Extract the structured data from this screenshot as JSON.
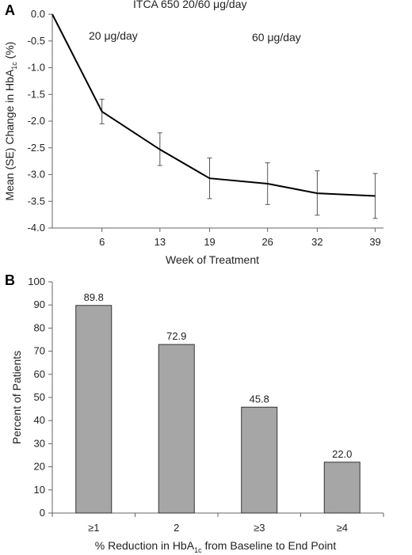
{
  "chart_data": [
    {
      "panel": "A",
      "type": "line",
      "title": "ITCA 650 20/60 μg/day",
      "annotations": [
        "20 μg/day",
        "60 μg/day"
      ],
      "xlabel": "Week of Treatment",
      "ylabel_main": "Mean (SE) Change in HbA",
      "ylabel_sub": "1c",
      "ylabel_tail": " (%)",
      "x": [
        0,
        6,
        13,
        19,
        26,
        32,
        39
      ],
      "xticks": [
        6,
        13,
        19,
        26,
        32,
        39
      ],
      "y": [
        0.0,
        -1.82,
        -2.53,
        -3.07,
        -3.17,
        -3.35,
        -3.4
      ],
      "error_low": [
        null,
        -2.05,
        -2.83,
        -3.45,
        -3.56,
        -3.76,
        -3.82
      ],
      "error_high": [
        null,
        -1.59,
        -2.22,
        -2.69,
        -2.78,
        -2.93,
        -2.98
      ],
      "yticks": [
        "0.0",
        "-0.5",
        "-1.0",
        "-1.5",
        "-2.0",
        "-2.5",
        "-3.0",
        "-3.5",
        "-4.0"
      ],
      "ylim": [
        -4.0,
        0.0
      ],
      "xlim": [
        0,
        40
      ],
      "grid": false
    },
    {
      "panel": "B",
      "type": "bar",
      "categories": [
        "≥1",
        "2",
        "≥3",
        "≥4"
      ],
      "values": [
        89.8,
        72.9,
        45.8,
        22.0
      ],
      "value_labels": [
        "89.8",
        "72.9",
        "45.8",
        "22.0"
      ],
      "ylabel": "Percent of Patients",
      "xlabel_main": "% Reduction in HbA",
      "xlabel_sub": "1c",
      "xlabel_tail": " from Baseline to End Point",
      "yticks": [
        "0",
        "10",
        "20",
        "30",
        "40",
        "50",
        "60",
        "70",
        "80",
        "90",
        "100"
      ],
      "ylim": [
        0,
        100
      ],
      "bar_color": "#a6a6a6",
      "grid": false
    }
  ]
}
